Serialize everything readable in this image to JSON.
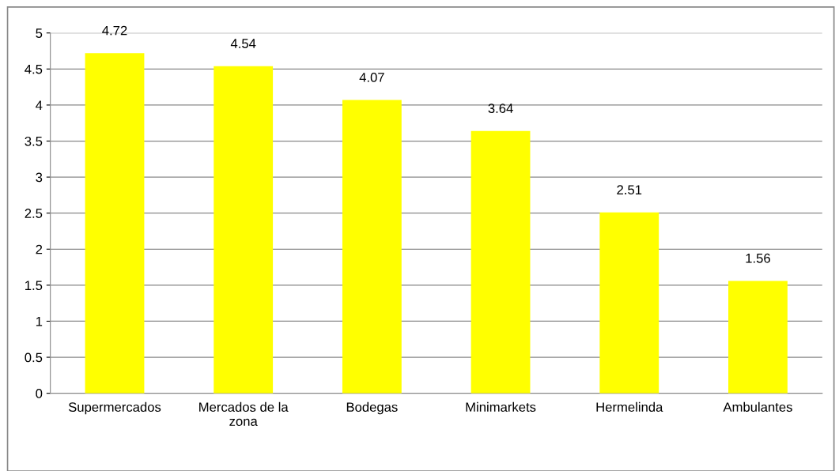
{
  "chart_data": {
    "type": "bar",
    "categories": [
      "Supermercados",
      "Mercados de la zona",
      "Bodegas",
      "Minimarkets",
      "Hermelinda",
      "Ambulantes"
    ],
    "values": [
      4.72,
      4.54,
      4.07,
      3.64,
      2.51,
      1.56
    ],
    "color": "#ffff00",
    "ylim": [
      0,
      5
    ],
    "yticks": [
      0,
      0.5,
      1,
      1.5,
      2,
      2.5,
      3,
      3.5,
      4,
      4.5,
      5
    ],
    "grid": "y",
    "data_labels": true
  }
}
